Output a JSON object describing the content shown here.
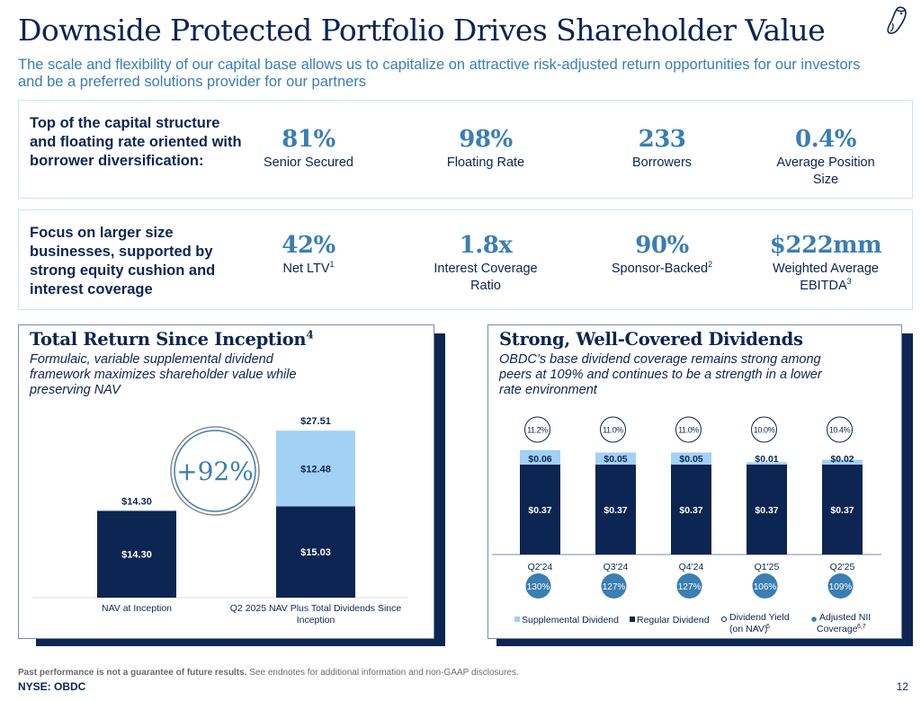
{
  "header": {
    "title": "Downside Protected Portfolio Drives Shareholder Value",
    "subtitle": "The scale and flexibility of our capital base allows us to capitalize on attractive risk-adjusted return opportunities for our investors and be a preferred solutions provider for our partners",
    "logo_icon": "owl-logo-icon"
  },
  "colors": {
    "navy": "#0d2552",
    "accent_blue": "#3a7eb3",
    "light_blue": "#a3d0f5",
    "box_border": "#cfe3f5"
  },
  "stat_rows": [
    {
      "label": "Top of the capital structure and floating rate oriented with borrower diversification:",
      "stats": [
        {
          "value": "81%",
          "label": "Senior Secured",
          "sup": ""
        },
        {
          "value": "98%",
          "label": "Floating Rate",
          "sup": ""
        },
        {
          "value": "233",
          "label": "Borrowers",
          "sup": ""
        },
        {
          "value": "0.4%",
          "label": "Average Position Size",
          "sup": ""
        }
      ]
    },
    {
      "label": "Focus on larger size businesses, supported by strong equity cushion and interest coverage",
      "stats": [
        {
          "value": "42%",
          "label": "Net LTV",
          "sup": "1"
        },
        {
          "value": "1.8x",
          "label": "Interest Coverage Ratio",
          "sup": ""
        },
        {
          "value": "90%",
          "label": "Sponsor-Backed",
          "sup": "2"
        },
        {
          "value": "$222mm",
          "label": "Weighted Average EBITDA",
          "sup": "3"
        }
      ]
    }
  ],
  "left_panel": {
    "title": "Total Return Since Inception",
    "title_sup": "4",
    "subtitle": "Formulaic, variable supplemental dividend framework maximizes shareholder value while preserving NAV",
    "badge": "+92%"
  },
  "right_panel": {
    "title": "Strong, Well-Covered Dividends",
    "subtitle": "OBDC’s base dividend coverage remains strong among peers at 109% and continues to be a strength in a lower rate environment"
  },
  "chart_data": [
    {
      "type": "bar",
      "stacked": true,
      "title": "Total Return Since Inception",
      "categories": [
        "NAV at Inception",
        "Q2 2025 NAV Plus Total Dividends Since Inception"
      ],
      "series": [
        {
          "name": "NAV",
          "color": "#0d2552",
          "values": [
            14.3,
            15.03
          ],
          "labels": [
            "$14.30",
            "$15.03"
          ]
        },
        {
          "name": "Total Dividends",
          "color": "#a3d0f5",
          "values": [
            0,
            12.48
          ],
          "labels": [
            "",
            "$12.48"
          ]
        }
      ],
      "totals": [
        "$14.30",
        "$27.51"
      ],
      "annotation": "+92%",
      "ylim": [
        0,
        28
      ]
    },
    {
      "type": "bar",
      "stacked": true,
      "title": "Strong, Well-Covered Dividends",
      "categories": [
        "Q2'24",
        "Q3'24",
        "Q4'24",
        "Q1'25",
        "Q2'25"
      ],
      "series": [
        {
          "name": "Regular Dividend",
          "color": "#0d2552",
          "values": [
            0.37,
            0.37,
            0.37,
            0.37,
            0.37
          ],
          "labels": [
            "$0.37",
            "$0.37",
            "$0.37",
            "$0.37",
            "$0.37"
          ]
        },
        {
          "name": "Supplemental Dividend",
          "color": "#a3d0f5",
          "values": [
            0.06,
            0.05,
            0.05,
            0.01,
            0.02
          ],
          "labels": [
            "$0.06",
            "$0.05",
            "$0.05",
            "$0.01",
            "$0.02"
          ]
        }
      ],
      "dividend_yield_on_nav": [
        "11.2%",
        "11.0%",
        "11.0%",
        "10.0%",
        "10.4%"
      ],
      "adjusted_nii_coverage": [
        "130%",
        "127%",
        "127%",
        "106%",
        "109%"
      ],
      "legend": [
        {
          "name": "Supplemental Dividend",
          "marker": "square",
          "color": "#a3d0f5",
          "sup": ""
        },
        {
          "name": "Regular Dividend",
          "marker": "square",
          "color": "#0d2552",
          "sup": ""
        },
        {
          "name": "Dividend Yield (on NAV)",
          "marker": "hollow-circle",
          "color": "#0d2552",
          "sup": "5"
        },
        {
          "name": "Adjusted NII Coverage",
          "marker": "filled-circle",
          "color": "#3a7eb3",
          "sup": "6,7"
        }
      ],
      "legend_position": "bottom",
      "ylim": [
        0,
        0.45
      ]
    }
  ],
  "footer": {
    "note_bold": "Past performance is not a guarantee of future results.",
    "note": " See endnotes for additional information and non-GAAP disclosures.",
    "ticker": "NYSE: OBDC",
    "page_number": "12"
  }
}
